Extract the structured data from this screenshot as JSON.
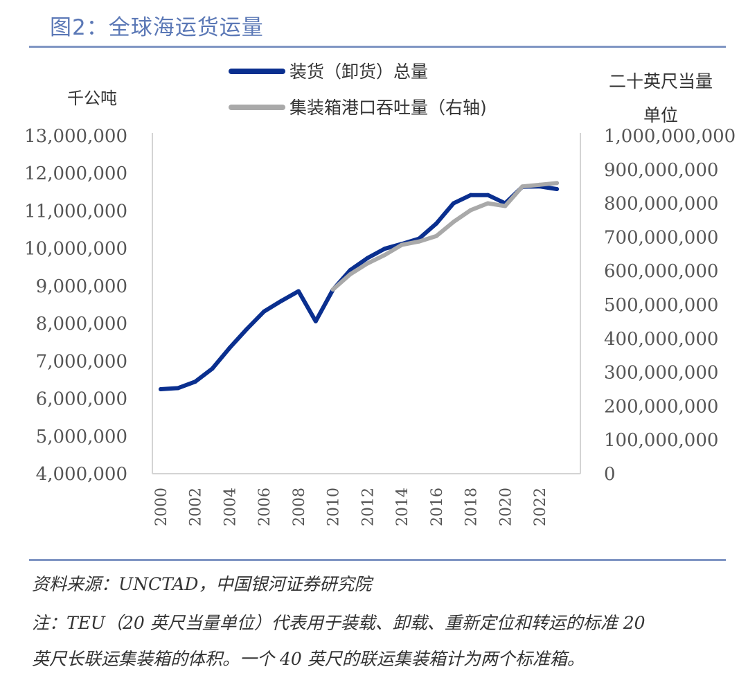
{
  "figure": {
    "title": "图2：全球海运货运量",
    "source": "资料来源：UNCTAD，中国银河证券研究院",
    "note_line1": "注：TEU（20 英尺当量单位）代表用于装载、卸载、重新定位和转运的标准 20",
    "note_line2": "英尺长联运集装箱的体积。一个 40 英尺的联运集装箱计为两个标准箱。"
  },
  "colors": {
    "title": "#5b78b6",
    "rule": "#7f95c3",
    "series1": "#0a2f8f",
    "series2": "#a9a9a9",
    "axis": "#d4d4d4"
  },
  "chart_data": {
    "type": "line",
    "y_left_label": "千公吨",
    "y_right_label_line1": "二十英尺当量",
    "y_right_label_line2": "单位",
    "ylim_left": [
      4000000,
      13000000
    ],
    "ylim_right": [
      0,
      1000000000
    ],
    "yticks_left": [
      "13,000,000",
      "12,000,000",
      "11,000,000",
      "10,000,000",
      "9,000,000",
      "8,000,000",
      "7,000,000",
      "6,000,000",
      "5,000,000",
      "4,000,000"
    ],
    "yticks_right": [
      "1,000,000,000",
      "900,000,000",
      "800,000,000",
      "700,000,000",
      "600,000,000",
      "500,000,000",
      "400,000,000",
      "300,000,000",
      "200,000,000",
      "100,000,000",
      "0"
    ],
    "xtick_labels": [
      "2000",
      "2002",
      "2004",
      "2006",
      "2008",
      "2010",
      "2012",
      "2014",
      "2016",
      "2018",
      "2020",
      "2022"
    ],
    "series": [
      {
        "name": "装货（卸货）总量",
        "axis": "left",
        "x": [
          2000,
          2001,
          2002,
          2003,
          2004,
          2005,
          2006,
          2007,
          2008,
          2009,
          2010,
          2011,
          2012,
          2013,
          2014,
          2015,
          2016,
          2017,
          2018,
          2019,
          2020,
          2021,
          2022,
          2023
        ],
        "values": [
          6250000,
          6280000,
          6450000,
          6800000,
          7350000,
          7850000,
          8320000,
          8600000,
          8860000,
          8060000,
          8900000,
          9420000,
          9740000,
          9990000,
          10120000,
          10260000,
          10660000,
          11200000,
          11420000,
          11420000,
          11200000,
          11640000,
          11650000,
          11580000
        ]
      },
      {
        "name": "集装箱港口吞吐量（右轴)",
        "axis": "right",
        "x": [
          2010,
          2011,
          2012,
          2013,
          2014,
          2015,
          2016,
          2017,
          2018,
          2019,
          2020,
          2021,
          2022,
          2023
        ],
        "values": [
          545000000,
          590000000,
          622000000,
          647000000,
          677000000,
          687000000,
          703000000,
          745000000,
          780000000,
          800000000,
          792000000,
          850000000,
          855000000,
          860000000
        ]
      }
    ]
  }
}
